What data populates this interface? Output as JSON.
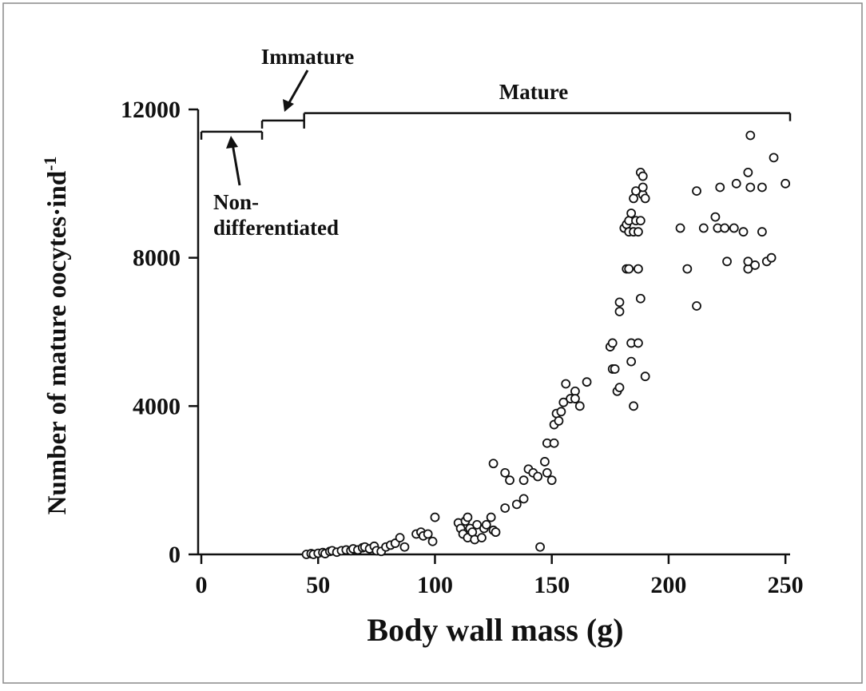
{
  "chart_data": {
    "type": "scatter",
    "xlabel": "Body wall mass (g)",
    "ylabel": "Number of mature oocytes·ind",
    "ylabel_sup": "-1",
    "xlim": [
      0,
      252
    ],
    "ylim": [
      0,
      12000
    ],
    "xticks": [
      0,
      50,
      100,
      150,
      200,
      250
    ],
    "yticks": [
      0,
      4000,
      8000,
      12000
    ],
    "stages": [
      {
        "label": [
          "Non-",
          "differentiated"
        ],
        "x_start": 0,
        "x_end": 26,
        "y": 11400
      },
      {
        "label": [
          "Immature"
        ],
        "x_start": 26,
        "x_end": 44,
        "y": 11700
      },
      {
        "label": [
          "Mature"
        ],
        "x_start": 44,
        "x_end": 252,
        "y": 11900
      }
    ],
    "x": [
      45,
      47,
      48,
      50,
      52,
      53,
      55,
      56,
      58,
      60,
      62,
      64,
      65,
      67,
      69,
      70,
      72,
      74,
      75,
      77,
      79,
      81,
      83,
      85,
      87,
      92,
      94,
      95,
      97,
      99,
      100,
      110,
      111,
      112,
      113,
      114,
      114,
      115,
      116,
      117,
      118,
      120,
      121,
      122,
      124,
      125,
      126,
      125,
      130,
      130,
      132,
      135,
      138,
      138,
      140,
      142,
      144,
      145,
      147,
      148,
      148,
      150,
      151,
      151,
      152,
      153,
      154,
      155,
      156,
      158,
      160,
      160,
      162,
      165,
      175,
      176,
      176,
      177,
      178,
      179,
      179,
      179,
      181,
      182,
      182,
      183,
      183,
      183,
      184,
      184,
      184,
      185,
      185,
      185,
      186,
      186,
      187,
      187,
      187,
      188,
      188,
      188,
      189,
      189,
      189,
      190,
      190,
      205,
      208,
      212,
      212,
      215,
      220,
      221,
      222,
      224,
      225,
      228,
      229,
      232,
      234,
      234,
      234,
      235,
      235,
      237,
      240,
      240,
      242,
      244,
      245,
      250
    ],
    "values": [
      0,
      20,
      0,
      30,
      50,
      20,
      80,
      100,
      60,
      100,
      120,
      100,
      150,
      120,
      180,
      200,
      150,
      220,
      100,
      80,
      200,
      250,
      300,
      450,
      200,
      550,
      600,
      500,
      550,
      350,
      1000,
      850,
      700,
      550,
      900,
      450,
      1000,
      700,
      600,
      400,
      800,
      450,
      700,
      800,
      1000,
      650,
      600,
      2450,
      1250,
      2200,
      2000,
      1350,
      1500,
      2000,
      2300,
      2200,
      2100,
      200,
      2500,
      2200,
      3000,
      2000,
      3000,
      3500,
      3800,
      3600,
      3850,
      4100,
      4600,
      4200,
      4400,
      4200,
      4000,
      4650,
      5600,
      5700,
      5000,
      5000,
      4400,
      4500,
      6800,
      6550,
      8800,
      7700,
      8900,
      8700,
      9000,
      7700,
      9200,
      5700,
      5200,
      8700,
      9600,
      4000,
      9000,
      9800,
      7700,
      5700,
      8700,
      6900,
      9000,
      10300,
      10200,
      9700,
      9900,
      9600,
      4800,
      8800,
      7700,
      6700,
      9800,
      8800,
      9100,
      8800,
      9900,
      8800,
      7900,
      8800,
      10000,
      8700,
      7700,
      7900,
      10300,
      11300,
      9900,
      7800,
      9900,
      8700,
      7900,
      8000,
      10700,
      10000
    ],
    "marker_color": "#111111"
  }
}
